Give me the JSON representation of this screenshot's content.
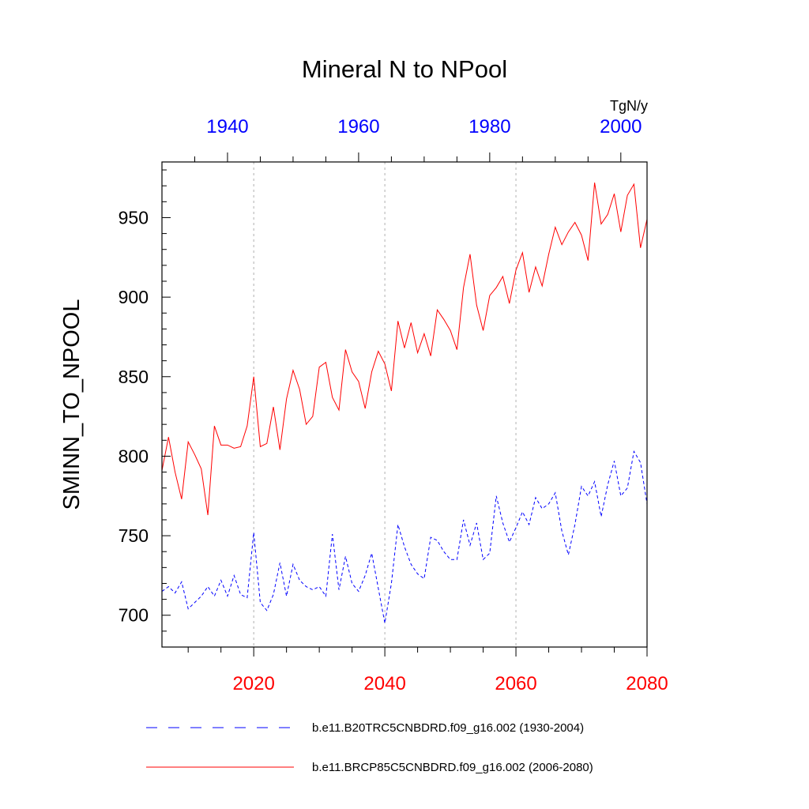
{
  "chart_data": {
    "type": "line",
    "title": "Mineral N to NPool",
    "units": "TgN/y",
    "ylabel": "SMINN_TO_NPOOL",
    "ylim": [
      680,
      985
    ],
    "yticks": [
      700,
      750,
      800,
      850,
      900,
      950
    ],
    "x_bottom": {
      "range": [
        2006,
        2080
      ],
      "ticks": [
        2020,
        2040,
        2060,
        2080
      ],
      "color": "#ff0000"
    },
    "x_top": {
      "range": [
        1930,
        2004
      ],
      "ticks": [
        1940,
        1960,
        1980,
        2000
      ],
      "color": "#0000ff"
    },
    "series": [
      {
        "name": "b.e11.B20TRC5CNBDRD.f09_g16.002 (1930-2004)",
        "color": "#0000ff",
        "style": "dashed",
        "axis": "top",
        "x": [
          1930,
          1931,
          1932,
          1933,
          1934,
          1935,
          1936,
          1937,
          1938,
          1939,
          1940,
          1941,
          1942,
          1943,
          1944,
          1945,
          1946,
          1947,
          1948,
          1949,
          1950,
          1951,
          1952,
          1953,
          1954,
          1955,
          1956,
          1957,
          1958,
          1959,
          1960,
          1961,
          1962,
          1963,
          1964,
          1965,
          1966,
          1967,
          1968,
          1969,
          1970,
          1971,
          1972,
          1973,
          1974,
          1975,
          1976,
          1977,
          1978,
          1979,
          1980,
          1981,
          1982,
          1983,
          1984,
          1985,
          1986,
          1987,
          1988,
          1989,
          1990,
          1991,
          1992,
          1993,
          1994,
          1995,
          1996,
          1997,
          1998,
          1999,
          2000,
          2001,
          2002,
          2003,
          2004
        ],
        "values": [
          715,
          718,
          714,
          721,
          704,
          708,
          712,
          718,
          712,
          722,
          712,
          725,
          713,
          711,
          752,
          708,
          703,
          713,
          733,
          712,
          732,
          722,
          718,
          716,
          718,
          712,
          751,
          716,
          737,
          720,
          715,
          725,
          739,
          717,
          695,
          720,
          757,
          743,
          732,
          726,
          723,
          749,
          747,
          740,
          735,
          735,
          760,
          744,
          758,
          735,
          739,
          775,
          758,
          746,
          755,
          765,
          757,
          774,
          767,
          770,
          777,
          753,
          738,
          757,
          781,
          775,
          784,
          762,
          782,
          797,
          775,
          780,
          803,
          796,
          770
        ]
      },
      {
        "name": "b.e11.BRCP85C5CNBDRD.f09_g16.002 (2006-2080)",
        "color": "#ff0000",
        "style": "solid",
        "axis": "bottom",
        "x": [
          2006,
          2007,
          2008,
          2009,
          2010,
          2011,
          2012,
          2013,
          2014,
          2015,
          2016,
          2017,
          2018,
          2019,
          2020,
          2021,
          2022,
          2023,
          2024,
          2025,
          2026,
          2027,
          2028,
          2029,
          2030,
          2031,
          2032,
          2033,
          2034,
          2035,
          2036,
          2037,
          2038,
          2039,
          2040,
          2041,
          2042,
          2043,
          2044,
          2045,
          2046,
          2047,
          2048,
          2049,
          2050,
          2051,
          2052,
          2053,
          2054,
          2055,
          2056,
          2057,
          2058,
          2059,
          2060,
          2061,
          2062,
          2063,
          2064,
          2065,
          2066,
          2067,
          2068,
          2069,
          2070,
          2071,
          2072,
          2073,
          2074,
          2075,
          2076,
          2077,
          2078,
          2079,
          2080
        ],
        "values": [
          791,
          812,
          790,
          773,
          809,
          801,
          792,
          763,
          819,
          807,
          807,
          805,
          806,
          819,
          850,
          806,
          808,
          831,
          804,
          836,
          854,
          842,
          820,
          825,
          856,
          859,
          837,
          829,
          867,
          853,
          847,
          830,
          853,
          866,
          858,
          841,
          885,
          868,
          884,
          865,
          877,
          863,
          892,
          886,
          879,
          867,
          906,
          927,
          895,
          879,
          901,
          906,
          913,
          896,
          917,
          928,
          903,
          919,
          907,
          927,
          944,
          933,
          941,
          947,
          939,
          923,
          972,
          946,
          952,
          965,
          941,
          964,
          971,
          931,
          949
        ]
      }
    ]
  }
}
